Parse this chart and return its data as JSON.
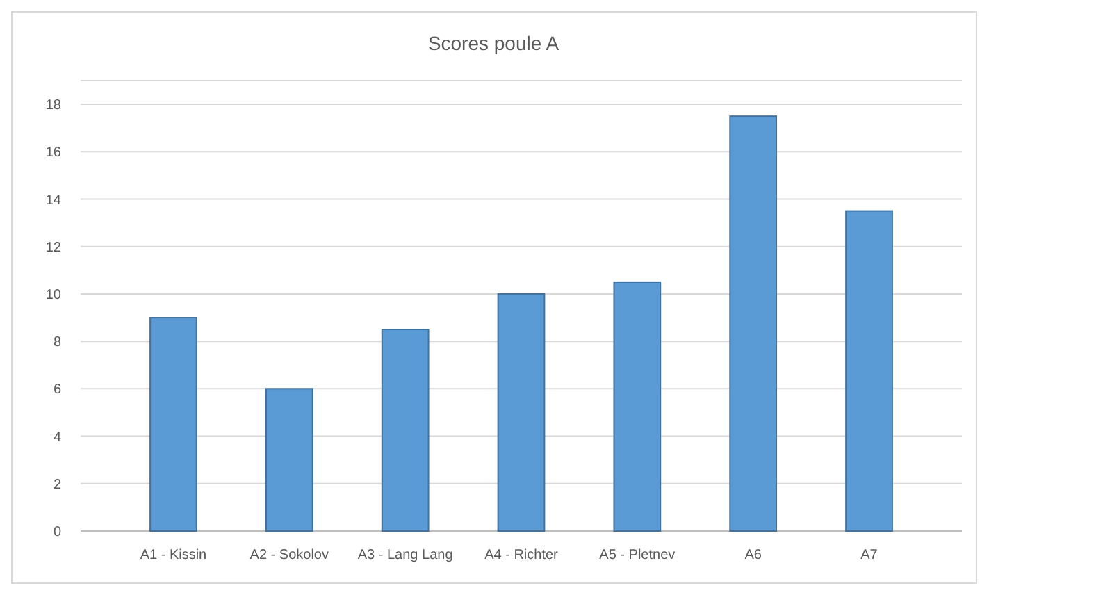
{
  "chart_data": {
    "type": "bar",
    "title": "Scores poule A",
    "categories": [
      "A1 - Kissin",
      "A2 - Sokolov",
      "A3 - Lang Lang",
      "A4 - Richter",
      "A5 - Pletnev",
      "A6",
      "A7"
    ],
    "values": [
      9,
      6,
      8.5,
      10,
      10.5,
      17.5,
      13.5
    ],
    "color": "#5b9bd5",
    "ylim": [
      0,
      19
    ],
    "yticks": [
      0,
      2,
      4,
      6,
      8,
      10,
      12,
      14,
      16,
      18
    ],
    "grid": "y"
  }
}
